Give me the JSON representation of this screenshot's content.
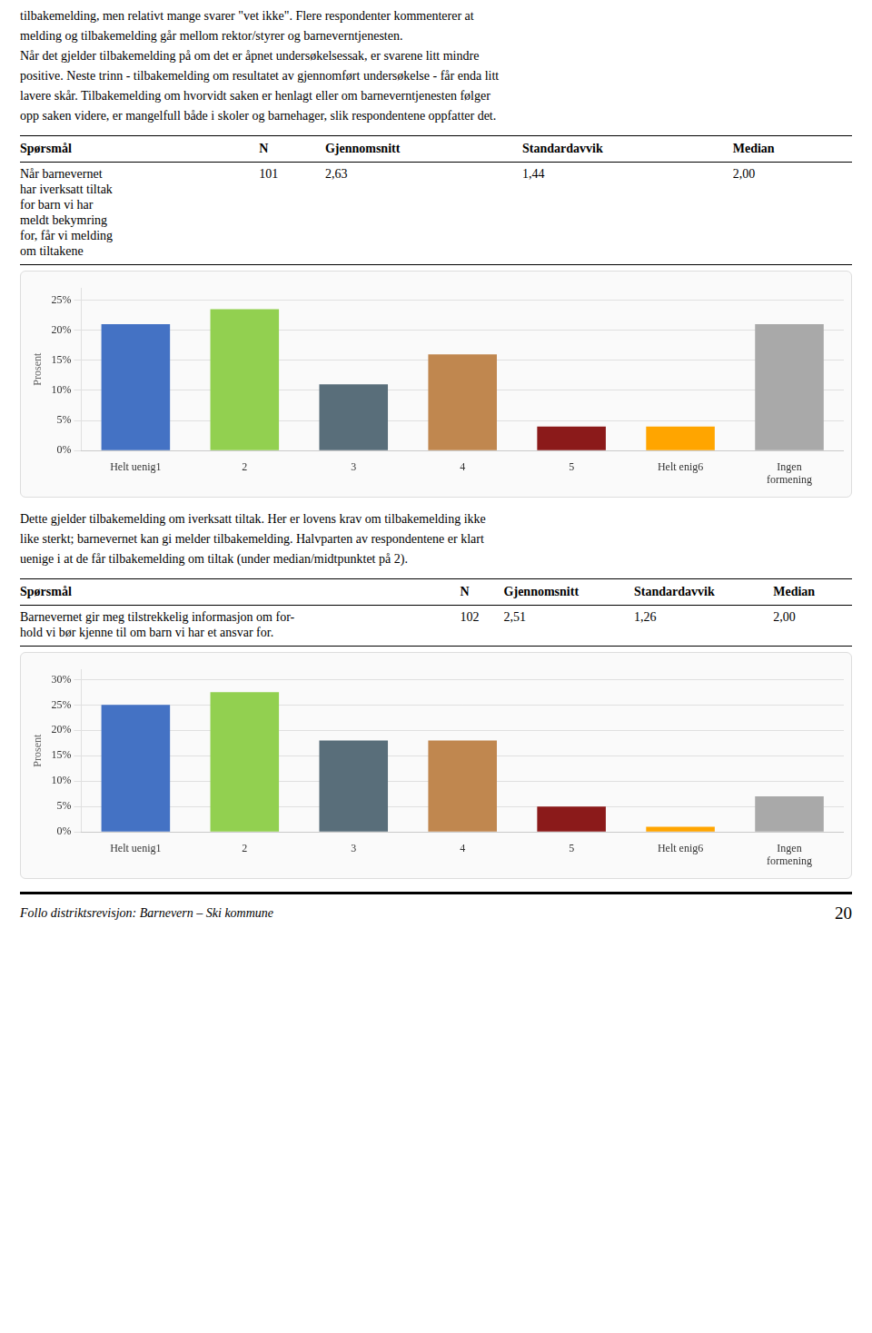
{
  "chart_data": [
    {
      "type": "bar",
      "annotations": [
        "tilbakemelding, men relativt mange svarer \"vet ikke\". Flere respondenter kommenterer at",
        "melding og tilbakemelding går mellom rektor/styrer og barneverntjenesten.",
        "Når det gjelder tilbakemelding på om det er åpnet undersøkelsessak, er svarene litt mindre",
        "positive. Neste trinn - tilbakemelding om resultatet av gjennomført undersøkelse - får enda litt",
        "lavere skår. Tilbakemelding om hvorvidt saken er henlagt eller om barneverntjenesten følger",
        "opp saken videre, er mangelfull både i skoler og barnehager, slik respondentene oppfatter det.",
        [
          "Spørsmål",
          "N",
          "Gjennomsnitt",
          "Standardavvik",
          "Median"
        ],
        [
          "Når barnevernet\nhar iverksatt tiltak\nfor barn vi har\nmeldt bekymring\nfor, får vi melding\nom tiltakene",
          "101",
          "2,63",
          "1,44",
          "2,00"
        ]
      ],
      "categories": [
        "Helt uenig1",
        "2",
        "3",
        "4",
        "5",
        "Helt enig6",
        "Ingen\nformening"
      ],
      "values": [
        21,
        23.5,
        11,
        16,
        4,
        4,
        21
      ],
      "colors": [
        "#4472C4",
        "#92D050",
        "#596E7A",
        "#C0874F",
        "#8B1A1A",
        "#FFA500",
        "#A9A9A9"
      ],
      "y_label": "Prosent",
      "ylim": [
        0,
        27
      ],
      "yticks": [
        {
          "value": 0,
          "label": "0%"
        },
        {
          "value": 5,
          "label": "5%"
        },
        {
          "value": 10,
          "label": "10%"
        },
        {
          "value": 15,
          "label": "15%"
        },
        {
          "value": 20,
          "label": "20%"
        },
        {
          "value": 25,
          "label": "25%"
        }
      ],
      "grid": true
    },
    {
      "type": "bar",
      "annotations": [
        "Dette gjelder tilbakemelding om iverksatt tiltak. Her er lovens krav om tilbakemelding ikke",
        "like sterkt; barnevernet kan gi melder tilbakemelding. Halvparten av respondentene er klart",
        "uenige i at de får tilbakemelding om tiltak (under median/midtpunktet på 2).",
        [
          "Spørsmål",
          "N",
          "Gjennomsnitt",
          "Standardavvik",
          "Median"
        ],
        [
          "Barnevernet gir meg tilstrekkelig informasjon om for-\nhold vi bør kjenne til om barn vi har et ansvar for.",
          "102",
          "2,51",
          "1,26",
          "2,00"
        ],
        "Follo distriktsrevisjon: Barnevern – Ski kommune",
        "20"
      ],
      "categories": [
        "Helt uenig1",
        "2",
        "3",
        "4",
        "5",
        "Helt enig6",
        "Ingen\nformening"
      ],
      "values": [
        25,
        27.5,
        18,
        18,
        5,
        1,
        7
      ],
      "colors": [
        "#4472C4",
        "#92D050",
        "#596E7A",
        "#C0874F",
        "#8B1A1A",
        "#FFA500",
        "#A9A9A9"
      ],
      "y_label": "Prosent",
      "ylim": [
        0,
        32
      ],
      "yticks": [
        {
          "value": 0,
          "label": "0%"
        },
        {
          "value": 5,
          "label": "5%"
        },
        {
          "value": 10,
          "label": "10%"
        },
        {
          "value": 15,
          "label": "15%"
        },
        {
          "value": 20,
          "label": "20%"
        },
        {
          "value": 25,
          "label": "25%"
        },
        {
          "value": 30,
          "label": "30%"
        }
      ],
      "grid": true
    }
  ]
}
